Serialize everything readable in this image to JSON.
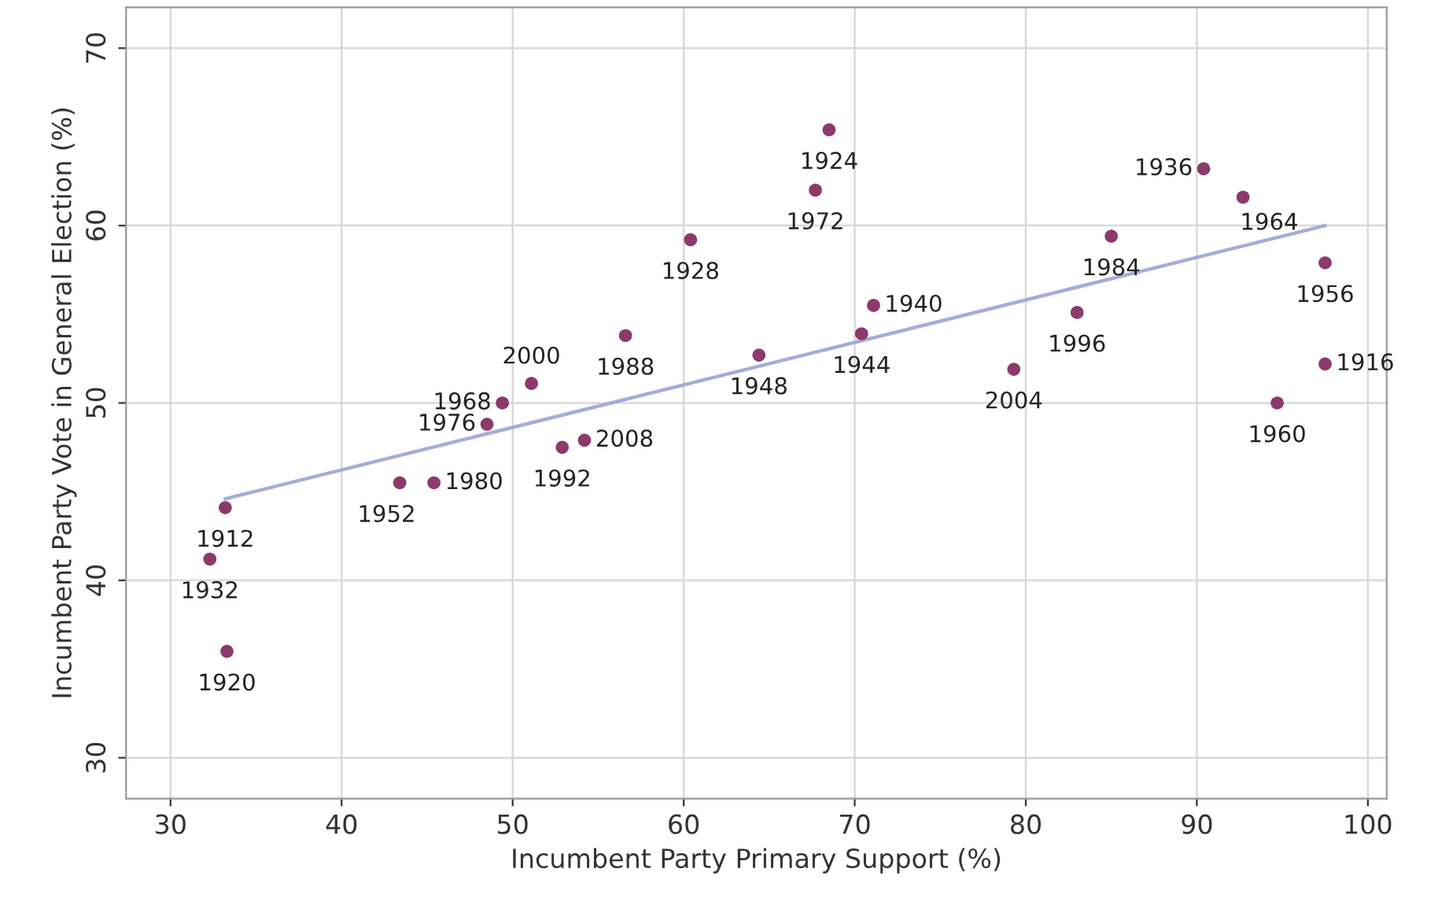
{
  "chart_data": {
    "type": "scatter",
    "xlabel": "Incumbent Party Primary Support (%)",
    "ylabel": "Incumbent Party Vote in General Election (%)",
    "xlim": [
      27.4,
      101.1
    ],
    "ylim": [
      27.7,
      72.3
    ],
    "xticks": [
      30,
      40,
      50,
      60,
      70,
      80,
      90,
      100
    ],
    "yticks": [
      30,
      40,
      50,
      60,
      70
    ],
    "grid": true,
    "series": [
      {
        "color": "#8b3a6b",
        "marker": "circle",
        "x": [
          33.2,
          32.3,
          33.3,
          43.4,
          45.4,
          48.5,
          49.4,
          51.1,
          52.9,
          54.2,
          56.6,
          60.4,
          64.4,
          67.7,
          68.5,
          70.4,
          71.1,
          79.3,
          83.0,
          85.0,
          90.4,
          92.7,
          97.5,
          97.5,
          94.7
        ],
        "values": [
          44.1,
          41.2,
          36.0,
          45.5,
          45.5,
          48.8,
          50.0,
          51.1,
          47.5,
          47.9,
          53.8,
          59.2,
          52.7,
          62.0,
          65.4,
          53.9,
          55.5,
          51.9,
          55.1,
          59.4,
          63.2,
          61.6,
          57.9,
          52.2,
          50.0
        ]
      },
      {
        "type": "line",
        "color": "#a6acd8",
        "x": [
          33.2,
          97.5
        ],
        "values": [
          44.6,
          60.0
        ]
      }
    ],
    "annotations": [
      {
        "text": "1912",
        "x": 33.2,
        "y": 44.1
      },
      {
        "text": "1932",
        "x": 32.3,
        "y": 41.2
      },
      {
        "text": "1920",
        "x": 33.3,
        "y": 36.0
      },
      {
        "text": "1952",
        "x": 43.4,
        "y": 45.5
      },
      {
        "text": "1980",
        "x": 45.4,
        "y": 45.5
      },
      {
        "text": "1976",
        "x": 48.5,
        "y": 48.8
      },
      {
        "text": "1968",
        "x": 49.4,
        "y": 50.0
      },
      {
        "text": "2000",
        "x": 51.1,
        "y": 51.1
      },
      {
        "text": "1992",
        "x": 52.9,
        "y": 47.5
      },
      {
        "text": "2008",
        "x": 54.2,
        "y": 47.9
      },
      {
        "text": "1988",
        "x": 56.6,
        "y": 53.8
      },
      {
        "text": "1928",
        "x": 60.4,
        "y": 59.2
      },
      {
        "text": "1948",
        "x": 64.4,
        "y": 52.7
      },
      {
        "text": "1972",
        "x": 67.7,
        "y": 62.0
      },
      {
        "text": "1924",
        "x": 68.5,
        "y": 65.4
      },
      {
        "text": "1944",
        "x": 70.4,
        "y": 53.9
      },
      {
        "text": "1940",
        "x": 71.1,
        "y": 55.5
      },
      {
        "text": "2004",
        "x": 79.3,
        "y": 51.9
      },
      {
        "text": "1996",
        "x": 83.0,
        "y": 55.1
      },
      {
        "text": "1984",
        "x": 85.0,
        "y": 59.4
      },
      {
        "text": "1936",
        "x": 90.4,
        "y": 63.2
      },
      {
        "text": "1964",
        "x": 92.7,
        "y": 61.6
      },
      {
        "text": "1956",
        "x": 97.5,
        "y": 57.9
      },
      {
        "text": "1916",
        "x": 97.5,
        "y": 52.2
      },
      {
        "text": "1960",
        "x": 94.7,
        "y": 50.0
      }
    ]
  }
}
